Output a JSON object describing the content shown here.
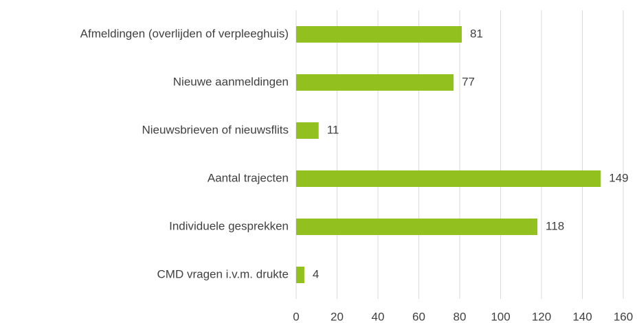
{
  "chart_data": {
    "type": "hbar",
    "categories": [
      "Afmeldingen (overlijden of verpleeghuis)",
      "Nieuwe aanmeldingen",
      "Nieuwsbrieven of nieuwsflits",
      "Aantal trajecten",
      "Individuele gesprekken",
      "CMD vragen i.v.m. drukte"
    ],
    "values": [
      81,
      77,
      11,
      149,
      118,
      4
    ],
    "color": "#92c01f",
    "xlim": [
      0,
      160
    ],
    "xticks": [
      0,
      20,
      40,
      60,
      80,
      100,
      120,
      140,
      160
    ],
    "grid": true
  }
}
